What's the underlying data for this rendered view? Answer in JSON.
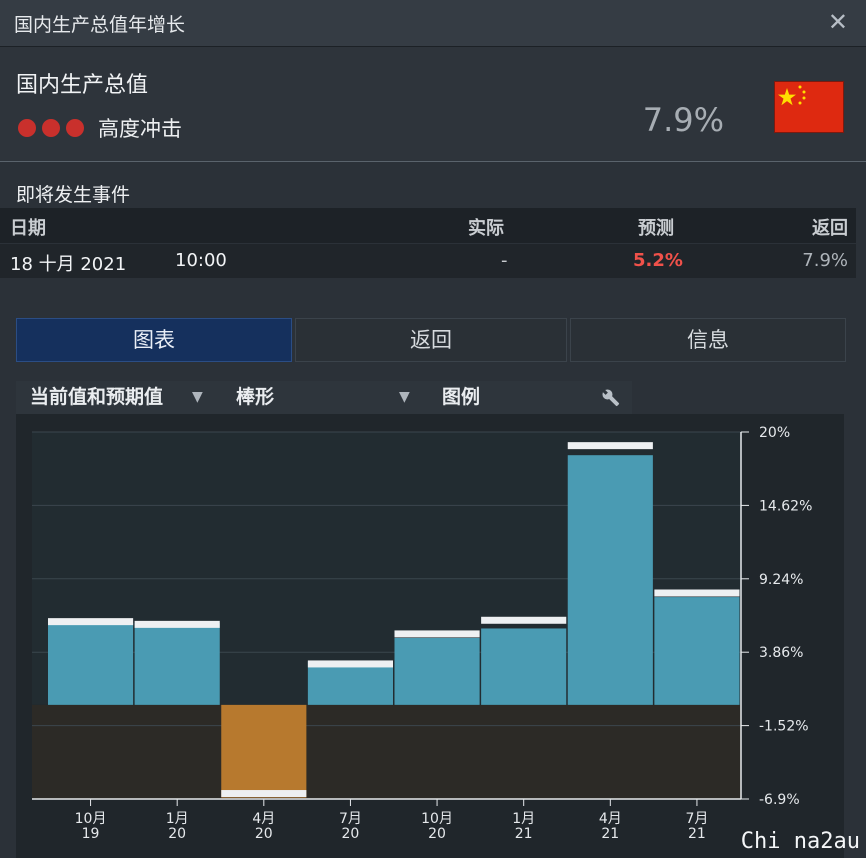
{
  "window": {
    "title": "国内生产总值年增长"
  },
  "indicator": {
    "name": "国内生产总值",
    "impact_label": "高度冲击",
    "impact_level": 3,
    "impact_color": "#c9302c",
    "value": "7.9%",
    "flag_icon": "china-flag-icon"
  },
  "upcoming": {
    "heading": "即将发生事件",
    "columns": {
      "date": "日期",
      "actual": "实际",
      "forecast": "预测",
      "previous": "返回"
    },
    "rows": [
      {
        "date": "18 十月 2021",
        "time": "10:00",
        "actual": "-",
        "forecast": "5.2%",
        "previous": "7.9%"
      }
    ]
  },
  "tabs": [
    {
      "label": "图表",
      "active": true
    },
    {
      "label": "返回",
      "active": false
    },
    {
      "label": "信息",
      "active": false
    }
  ],
  "options": {
    "series_select": "当前值和预期值",
    "chart_type": "棒形",
    "legend": "图例",
    "wrench_icon": "wrench-icon"
  },
  "chart_data": {
    "type": "bar",
    "categories": [
      "10月 19",
      "1月 20",
      "4月 20",
      "7月 20",
      "10月 20",
      "1月 21",
      "4月 21",
      "7月 21"
    ],
    "category_lines": [
      [
        "10月",
        "19"
      ],
      [
        "1月",
        "20"
      ],
      [
        "4月",
        "20"
      ],
      [
        "7月",
        "20"
      ],
      [
        "10月",
        "20"
      ],
      [
        "1月",
        "21"
      ],
      [
        "4月",
        "21"
      ],
      [
        "7月",
        "21"
      ]
    ],
    "series": [
      {
        "values": [
          6.0,
          6.0,
          -6.8,
          3.2,
          4.9,
          5.6,
          18.3,
          7.9
        ],
        "color_pos": "#4a9bb3",
        "color_neg": "#b7792e"
      },
      {
        "values": [
          6.1,
          5.9,
          -6.5,
          3.0,
          5.2,
          6.2,
          19.0,
          8.2
        ],
        "color": "#eef0f2"
      }
    ],
    "y_ticks": [
      "20%",
      "14.62%",
      "9.24%",
      "3.86%",
      "-1.52%",
      "-6.9%"
    ],
    "ylim": [
      -6.9,
      20
    ],
    "grid": true,
    "xlabel": "",
    "ylabel": ""
  },
  "watermark": "Chi na2au"
}
